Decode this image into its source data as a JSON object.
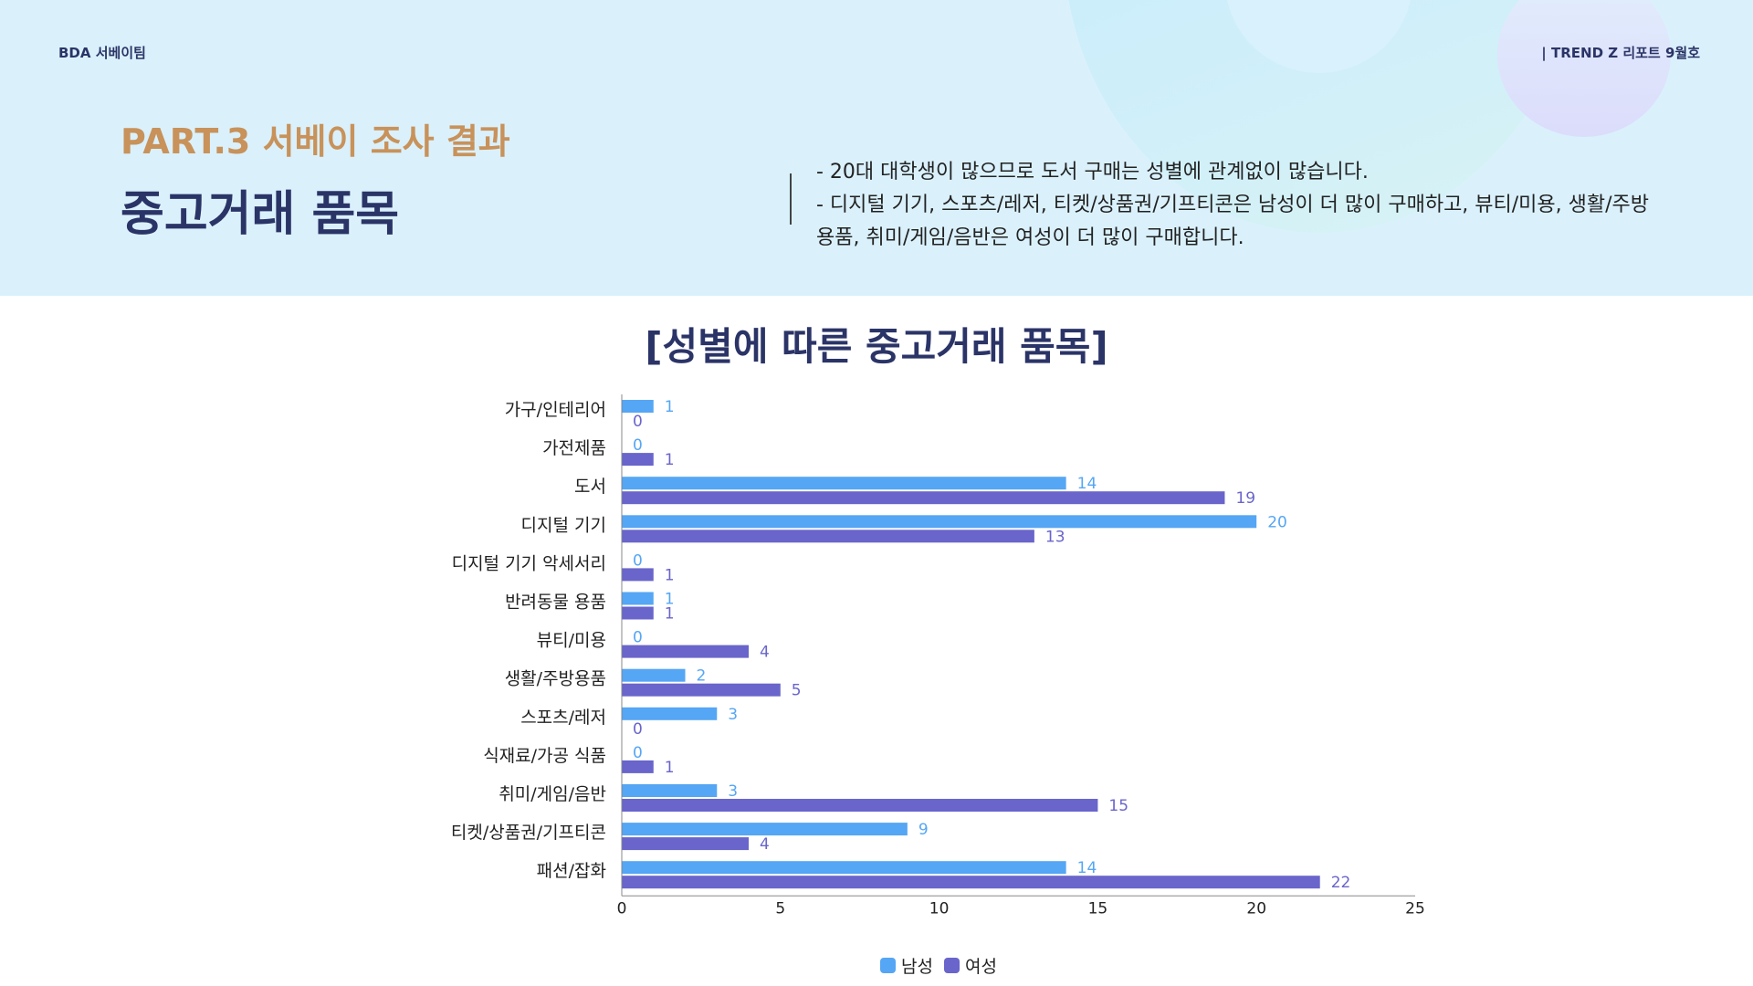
{
  "header": {
    "team": "BDA 서베이팀",
    "report": "| TREND Z 리포트 9월호",
    "part": "PART.3 서베이 조사 결과",
    "title": "중고거래 품목",
    "desc": [
      "- 20대 대학생이 많으므로 도서 구매는 성별에 관계없이 많습니다.",
      "- 디지털 기기, 스포츠/레저, 티켓/상품권/기프티콘은 남성이 더 많이 구매하고, 뷰티/미용, 생활/주방",
      "용품, 취미/게임/음반은 여성이 더 많이 구매합니다."
    ]
  },
  "chart_data": {
    "type": "bar",
    "orientation": "horizontal",
    "title": "[성별에 따른 중고거래 품목]",
    "categories": [
      "가구/인테리어",
      "가전제품",
      "도서",
      "디지털 기기",
      "디지털 기기 악세서리",
      "반려동물 용품",
      "뷰티/미용",
      "생활/주방용품",
      "스포츠/레저",
      "식재료/가공 식품",
      "취미/게임/음반",
      "티켓/상품권/기프티콘",
      "패션/잡화"
    ],
    "series": [
      {
        "name": "남성",
        "color": "#55a6f4",
        "values": [
          1,
          0,
          14,
          20,
          0,
          1,
          0,
          2,
          3,
          0,
          3,
          9,
          14
        ]
      },
      {
        "name": "여성",
        "color": "#6965cb",
        "values": [
          0,
          1,
          19,
          13,
          1,
          1,
          4,
          5,
          0,
          1,
          15,
          4,
          22
        ]
      }
    ],
    "xlim": [
      0,
      25
    ],
    "xticks": [
      0,
      5,
      10,
      15,
      20,
      25
    ],
    "grid": false,
    "legend": "bottom"
  }
}
